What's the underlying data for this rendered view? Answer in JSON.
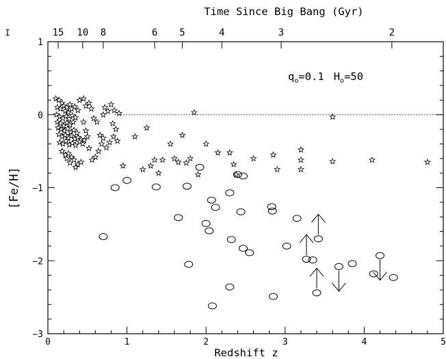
{
  "chart_data": {
    "type": "scatter",
    "xlabel": "Redshift z",
    "ylabel": "[Fe/H]",
    "top_axis_label": "Time Since Big Bang (Gyr)",
    "annotation": {
      "q": "q",
      "q_sub": "o",
      "q_val": "=0.1",
      "h": "H",
      "h_sub": "o",
      "h_val": "=50"
    },
    "xlim": [
      0,
      5
    ],
    "ylim": [
      -3,
      1
    ],
    "x_ticks": [
      0,
      1,
      2,
      3,
      4,
      5
    ],
    "x_tick_labels": [
      "0",
      "1",
      "2",
      "3",
      "4",
      "5"
    ],
    "y_ticks": [
      1,
      0,
      -1,
      -2,
      -3
    ],
    "y_tick_labels": [
      "1",
      "0",
      "−1",
      "−2",
      "−3"
    ],
    "top_ticks": [
      {
        "label": "15",
        "z": 0.13
      },
      {
        "label": "10",
        "z": 0.44
      },
      {
        "label": "8",
        "z": 0.7
      },
      {
        "label": "6",
        "z": 1.35
      },
      {
        "label": "5",
        "z": 1.7
      },
      {
        "label": "4",
        "z": 2.2
      },
      {
        "label": "3",
        "z": 2.95
      },
      {
        "label": "2",
        "z": 4.35
      }
    ],
    "extra_top_tick_label": "I",
    "solar_line_y": 0,
    "series": [
      {
        "marker": "star",
        "points": [
          [
            0.1,
            0.22
          ],
          [
            0.14,
            0.2
          ],
          [
            0.18,
            0.16
          ],
          [
            0.12,
            0.1
          ],
          [
            0.16,
            0.08
          ],
          [
            0.2,
            0.12
          ],
          [
            0.24,
            0.1
          ],
          [
            0.28,
            0.14
          ],
          [
            0.22,
            0.05
          ],
          [
            0.26,
            0.03
          ],
          [
            0.3,
            0.08
          ],
          [
            0.34,
            0.11
          ],
          [
            0.38,
            0.06
          ],
          [
            0.11,
            0.0
          ],
          [
            0.15,
            -0.03
          ],
          [
            0.19,
            -0.05
          ],
          [
            0.23,
            -0.02
          ],
          [
            0.27,
            -0.06
          ],
          [
            0.31,
            -0.01
          ],
          [
            0.35,
            -0.04
          ],
          [
            0.12,
            -0.1
          ],
          [
            0.16,
            -0.12
          ],
          [
            0.2,
            -0.15
          ],
          [
            0.24,
            -0.11
          ],
          [
            0.28,
            -0.14
          ],
          [
            0.32,
            -0.1
          ],
          [
            0.13,
            -0.18
          ],
          [
            0.17,
            -0.2
          ],
          [
            0.21,
            -0.22
          ],
          [
            0.25,
            -0.19
          ],
          [
            0.29,
            -0.24
          ],
          [
            0.33,
            -0.21
          ],
          [
            0.37,
            -0.25
          ],
          [
            0.14,
            -0.27
          ],
          [
            0.18,
            -0.3
          ],
          [
            0.22,
            -0.28
          ],
          [
            0.26,
            -0.32
          ],
          [
            0.3,
            -0.29
          ],
          [
            0.34,
            -0.33
          ],
          [
            0.38,
            -0.31
          ],
          [
            0.42,
            -0.34
          ],
          [
            0.15,
            -0.38
          ],
          [
            0.19,
            -0.4
          ],
          [
            0.23,
            -0.36
          ],
          [
            0.27,
            -0.41
          ],
          [
            0.31,
            -0.39
          ],
          [
            0.35,
            -0.42
          ],
          [
            0.4,
            -0.37
          ],
          [
            0.44,
            -0.4
          ],
          [
            0.46,
            -0.35
          ],
          [
            0.18,
            -0.5
          ],
          [
            0.22,
            -0.55
          ],
          [
            0.26,
            -0.53
          ],
          [
            0.3,
            -0.58
          ],
          [
            0.24,
            -0.6
          ],
          [
            0.33,
            -0.62
          ],
          [
            0.28,
            -0.66
          ],
          [
            0.38,
            -0.68
          ],
          [
            0.42,
            -0.65
          ],
          [
            0.35,
            -0.72
          ],
          [
            0.45,
            0.22
          ],
          [
            0.48,
            0.12
          ],
          [
            0.52,
            0.16
          ],
          [
            0.55,
            0.08
          ],
          [
            0.58,
            -0.05
          ],
          [
            0.62,
            -0.1
          ],
          [
            0.66,
            -0.28
          ],
          [
            0.7,
            -0.32
          ],
          [
            0.72,
            0.1
          ],
          [
            0.76,
            0.05
          ],
          [
            0.8,
            0.14
          ],
          [
            0.84,
            0.06
          ],
          [
            0.82,
            -0.12
          ],
          [
            0.86,
            -0.2
          ],
          [
            0.9,
            0.02
          ],
          [
            0.68,
            -0.4
          ],
          [
            0.74,
            -0.45
          ],
          [
            0.64,
            -0.5
          ],
          [
            0.6,
            -0.58
          ],
          [
            0.56,
            -0.62
          ],
          [
            0.78,
            -0.38
          ],
          [
            0.88,
            -0.36
          ],
          [
            0.83,
            -0.3
          ],
          [
            0.95,
            -0.7
          ],
          [
            0.52,
            -0.46
          ],
          [
            0.48,
            -0.22
          ],
          [
            0.5,
            -0.3
          ],
          [
            0.45,
            -0.1
          ],
          [
            0.7,
            0.0
          ],
          [
            0.4,
            0.2
          ],
          [
            1.1,
            -0.3
          ],
          [
            1.25,
            -0.18
          ],
          [
            1.35,
            -0.62
          ],
          [
            1.45,
            -0.62
          ],
          [
            1.55,
            -0.4
          ],
          [
            1.7,
            -0.28
          ],
          [
            1.8,
            -0.6
          ],
          [
            1.85,
            0.03
          ],
          [
            2.0,
            -0.4
          ],
          [
            2.15,
            -0.52
          ],
          [
            2.3,
            -0.52
          ],
          [
            2.35,
            -0.68
          ],
          [
            2.6,
            -0.6
          ],
          [
            2.85,
            -0.55
          ],
          [
            3.2,
            -0.48
          ],
          [
            3.2,
            -0.62
          ],
          [
            3.6,
            -0.03
          ],
          [
            4.1,
            -0.62
          ],
          [
            4.8,
            -0.65
          ],
          [
            1.3,
            -0.7
          ],
          [
            1.65,
            -0.65
          ],
          [
            1.75,
            -0.66
          ],
          [
            1.9,
            -0.82
          ],
          [
            2.38,
            -0.82
          ],
          [
            2.9,
            -0.75
          ],
          [
            3.2,
            -0.75
          ],
          [
            3.6,
            -0.64
          ],
          [
            1.2,
            -0.75
          ],
          [
            1.4,
            -0.8
          ],
          [
            1.6,
            -0.6
          ]
        ]
      },
      {
        "marker": "circle",
        "points": [
          [
            0.7,
            -1.67
          ],
          [
            0.85,
            -1.0
          ],
          [
            1.0,
            -0.9
          ],
          [
            1.37,
            -0.99
          ],
          [
            1.65,
            -1.41
          ],
          [
            1.76,
            -0.98
          ],
          [
            1.78,
            -2.05
          ],
          [
            1.92,
            -0.72
          ],
          [
            2.0,
            -1.49
          ],
          [
            2.04,
            -1.59
          ],
          [
            2.07,
            -1.17
          ],
          [
            2.08,
            -2.62
          ],
          [
            2.12,
            -1.27
          ],
          [
            2.3,
            -1.07
          ],
          [
            2.3,
            -2.36
          ],
          [
            2.32,
            -1.71
          ],
          [
            2.4,
            -0.82
          ],
          [
            2.44,
            -1.33
          ],
          [
            2.47,
            -0.84
          ],
          [
            2.47,
            -1.83
          ],
          [
            2.55,
            -1.89
          ],
          [
            2.83,
            -1.26
          ],
          [
            2.84,
            -1.32
          ],
          [
            2.85,
            -2.49
          ],
          [
            3.02,
            -1.8
          ],
          [
            3.15,
            -1.42
          ],
          [
            3.27,
            -1.98
          ],
          [
            3.35,
            -1.99
          ],
          [
            3.4,
            -2.44
          ],
          [
            3.42,
            -1.7
          ],
          [
            3.68,
            -2.08
          ],
          [
            3.85,
            -2.04
          ],
          [
            4.12,
            -2.18
          ],
          [
            4.2,
            -1.93
          ],
          [
            4.37,
            -2.23
          ]
        ]
      }
    ],
    "limits": [
      {
        "x": 3.42,
        "y": -1.7,
        "direction": "up"
      },
      {
        "x": 3.27,
        "y": -1.98,
        "direction": "up"
      },
      {
        "x": 3.4,
        "y": -2.44,
        "direction": "up"
      },
      {
        "x": 3.68,
        "y": -2.08,
        "direction": "down"
      },
      {
        "x": 4.2,
        "y": -1.93,
        "direction": "down"
      }
    ]
  }
}
